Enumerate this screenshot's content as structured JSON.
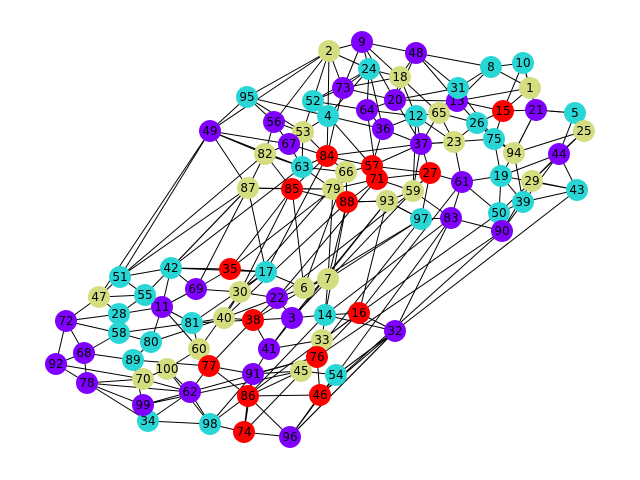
{
  "colors": {
    "purple": "#7f00ff",
    "cyan": "#28d6d6",
    "khaki": "#d4dd80",
    "red": "#ff0000",
    "edge": "#000000"
  },
  "nodes": [
    {
      "id": "1",
      "color": "khaki"
    },
    {
      "id": "2",
      "color": "khaki"
    },
    {
      "id": "3",
      "color": "purple"
    },
    {
      "id": "4",
      "color": "cyan"
    },
    {
      "id": "5",
      "color": "cyan"
    },
    {
      "id": "6",
      "color": "khaki"
    },
    {
      "id": "7",
      "color": "khaki"
    },
    {
      "id": "8",
      "color": "cyan"
    },
    {
      "id": "9",
      "color": "purple"
    },
    {
      "id": "10",
      "color": "cyan"
    },
    {
      "id": "11",
      "color": "purple"
    },
    {
      "id": "12",
      "color": "cyan"
    },
    {
      "id": "13",
      "color": "purple"
    },
    {
      "id": "14",
      "color": "cyan"
    },
    {
      "id": "15",
      "color": "red"
    },
    {
      "id": "16",
      "color": "red"
    },
    {
      "id": "17",
      "color": "cyan"
    },
    {
      "id": "18",
      "color": "khaki"
    },
    {
      "id": "19",
      "color": "cyan"
    },
    {
      "id": "20",
      "color": "purple"
    },
    {
      "id": "21",
      "color": "purple"
    },
    {
      "id": "22",
      "color": "purple"
    },
    {
      "id": "23",
      "color": "khaki"
    },
    {
      "id": "24",
      "color": "cyan"
    },
    {
      "id": "25",
      "color": "khaki"
    },
    {
      "id": "26",
      "color": "cyan"
    },
    {
      "id": "27",
      "color": "red"
    },
    {
      "id": "28",
      "color": "cyan"
    },
    {
      "id": "29",
      "color": "khaki"
    },
    {
      "id": "30",
      "color": "khaki"
    },
    {
      "id": "31",
      "color": "cyan"
    },
    {
      "id": "32",
      "color": "purple"
    },
    {
      "id": "33",
      "color": "khaki"
    },
    {
      "id": "34",
      "color": "cyan"
    },
    {
      "id": "35",
      "color": "red"
    },
    {
      "id": "36",
      "color": "purple"
    },
    {
      "id": "37",
      "color": "purple"
    },
    {
      "id": "38",
      "color": "red"
    },
    {
      "id": "39",
      "color": "cyan"
    },
    {
      "id": "40",
      "color": "khaki"
    },
    {
      "id": "41",
      "color": "purple"
    },
    {
      "id": "42",
      "color": "cyan"
    },
    {
      "id": "43",
      "color": "cyan"
    },
    {
      "id": "44",
      "color": "purple"
    },
    {
      "id": "45",
      "color": "khaki"
    },
    {
      "id": "46",
      "color": "red"
    },
    {
      "id": "47",
      "color": "khaki"
    },
    {
      "id": "48",
      "color": "purple"
    },
    {
      "id": "49",
      "color": "purple"
    },
    {
      "id": "50",
      "color": "cyan"
    },
    {
      "id": "51",
      "color": "cyan"
    },
    {
      "id": "52",
      "color": "cyan"
    },
    {
      "id": "53",
      "color": "khaki"
    },
    {
      "id": "54",
      "color": "cyan"
    },
    {
      "id": "55",
      "color": "cyan"
    },
    {
      "id": "56",
      "color": "purple"
    },
    {
      "id": "57",
      "color": "red"
    },
    {
      "id": "58",
      "color": "cyan"
    },
    {
      "id": "59",
      "color": "khaki"
    },
    {
      "id": "60",
      "color": "khaki"
    },
    {
      "id": "61",
      "color": "purple"
    },
    {
      "id": "62",
      "color": "purple"
    },
    {
      "id": "63",
      "color": "cyan"
    },
    {
      "id": "64",
      "color": "purple"
    },
    {
      "id": "65",
      "color": "khaki"
    },
    {
      "id": "66",
      "color": "khaki"
    },
    {
      "id": "67",
      "color": "purple"
    },
    {
      "id": "68",
      "color": "purple"
    },
    {
      "id": "69",
      "color": "purple"
    },
    {
      "id": "70",
      "color": "khaki"
    },
    {
      "id": "71",
      "color": "red"
    },
    {
      "id": "72",
      "color": "purple"
    },
    {
      "id": "73",
      "color": "purple"
    },
    {
      "id": "74",
      "color": "red"
    },
    {
      "id": "75",
      "color": "cyan"
    },
    {
      "id": "76",
      "color": "red"
    },
    {
      "id": "77",
      "color": "red"
    },
    {
      "id": "78",
      "color": "purple"
    },
    {
      "id": "79",
      "color": "khaki"
    },
    {
      "id": "80",
      "color": "cyan"
    },
    {
      "id": "81",
      "color": "cyan"
    },
    {
      "id": "82",
      "color": "khaki"
    },
    {
      "id": "83",
      "color": "purple"
    },
    {
      "id": "84",
      "color": "red"
    },
    {
      "id": "85",
      "color": "red"
    },
    {
      "id": "86",
      "color": "red"
    },
    {
      "id": "87",
      "color": "khaki"
    },
    {
      "id": "88",
      "color": "red"
    },
    {
      "id": "89",
      "color": "cyan"
    },
    {
      "id": "90",
      "color": "purple"
    },
    {
      "id": "91",
      "color": "purple"
    },
    {
      "id": "92",
      "color": "purple"
    },
    {
      "id": "93",
      "color": "khaki"
    },
    {
      "id": "94",
      "color": "khaki"
    },
    {
      "id": "95",
      "color": "cyan"
    },
    {
      "id": "96",
      "color": "purple"
    },
    {
      "id": "97",
      "color": "cyan"
    },
    {
      "id": "98",
      "color": "cyan"
    },
    {
      "id": "99",
      "color": "purple"
    },
    {
      "id": "100",
      "color": "khaki"
    }
  ],
  "edges": [
    [
      "9",
      "24"
    ],
    [
      "9",
      "48"
    ],
    [
      "9",
      "73"
    ],
    [
      "9",
      "18"
    ],
    [
      "9",
      "2"
    ],
    [
      "48",
      "18"
    ],
    [
      "48",
      "8"
    ],
    [
      "48",
      "31"
    ],
    [
      "48",
      "20"
    ],
    [
      "24",
      "18"
    ],
    [
      "24",
      "73"
    ],
    [
      "24",
      "64"
    ],
    [
      "2",
      "95"
    ],
    [
      "2",
      "52"
    ],
    [
      "2",
      "49"
    ],
    [
      "2",
      "73"
    ],
    [
      "2",
      "4"
    ],
    [
      "8",
      "10"
    ],
    [
      "8",
      "31"
    ],
    [
      "8",
      "1"
    ],
    [
      "10",
      "1"
    ],
    [
      "10",
      "15"
    ],
    [
      "1",
      "21"
    ],
    [
      "1",
      "13"
    ],
    [
      "21",
      "5"
    ],
    [
      "5",
      "25"
    ],
    [
      "25",
      "44"
    ],
    [
      "25",
      "94"
    ],
    [
      "44",
      "43"
    ],
    [
      "43",
      "29"
    ],
    [
      "43",
      "39"
    ],
    [
      "43",
      "19"
    ],
    [
      "29",
      "90"
    ],
    [
      "39",
      "50"
    ],
    [
      "50",
      "90"
    ],
    [
      "90",
      "83"
    ],
    [
      "83",
      "97"
    ],
    [
      "97",
      "93"
    ],
    [
      "93",
      "59"
    ],
    [
      "59",
      "27"
    ],
    [
      "27",
      "61"
    ],
    [
      "61",
      "19"
    ],
    [
      "19",
      "94"
    ],
    [
      "94",
      "75"
    ],
    [
      "75",
      "26"
    ],
    [
      "26",
      "15"
    ],
    [
      "15",
      "13"
    ],
    [
      "13",
      "31"
    ],
    [
      "31",
      "65"
    ],
    [
      "65",
      "12"
    ],
    [
      "12",
      "36"
    ],
    [
      "36",
      "64"
    ],
    [
      "64",
      "20"
    ],
    [
      "20",
      "18"
    ],
    [
      "18",
      "73"
    ],
    [
      "73",
      "52"
    ],
    [
      "52",
      "4"
    ],
    [
      "4",
      "53"
    ],
    [
      "53",
      "56"
    ],
    [
      "56",
      "95"
    ],
    [
      "95",
      "49"
    ],
    [
      "49",
      "82"
    ],
    [
      "82",
      "67"
    ],
    [
      "67",
      "63"
    ],
    [
      "63",
      "84"
    ],
    [
      "84",
      "57"
    ],
    [
      "57",
      "71"
    ],
    [
      "71",
      "88"
    ],
    [
      "88",
      "66"
    ],
    [
      "66",
      "79"
    ],
    [
      "79",
      "85"
    ],
    [
      "85",
      "87"
    ],
    [
      "87",
      "82"
    ],
    [
      "87",
      "49"
    ],
    [
      "53",
      "63"
    ],
    [
      "4",
      "84"
    ],
    [
      "37",
      "23"
    ],
    [
      "23",
      "26"
    ],
    [
      "37",
      "57"
    ],
    [
      "37",
      "12"
    ],
    [
      "65",
      "23"
    ],
    [
      "71",
      "27"
    ],
    [
      "59",
      "37"
    ],
    [
      "93",
      "88"
    ],
    [
      "79",
      "63"
    ],
    [
      "85",
      "84"
    ],
    [
      "66",
      "84"
    ],
    [
      "61",
      "83"
    ],
    [
      "19",
      "50"
    ],
    [
      "29",
      "44"
    ],
    [
      "94",
      "21"
    ],
    [
      "5",
      "21"
    ],
    [
      "75",
      "37"
    ],
    [
      "15",
      "21"
    ],
    [
      "13",
      "20"
    ],
    [
      "24",
      "4"
    ],
    [
      "53",
      "67"
    ],
    [
      "56",
      "67"
    ],
    [
      "87",
      "42"
    ],
    [
      "87",
      "51"
    ],
    [
      "49",
      "51"
    ],
    [
      "42",
      "35"
    ],
    [
      "42",
      "69"
    ],
    [
      "42",
      "51"
    ],
    [
      "51",
      "55"
    ],
    [
      "51",
      "47"
    ],
    [
      "47",
      "72"
    ],
    [
      "47",
      "28"
    ],
    [
      "72",
      "92"
    ],
    [
      "72",
      "68"
    ],
    [
      "92",
      "68"
    ],
    [
      "68",
      "78"
    ],
    [
      "78",
      "99"
    ],
    [
      "99",
      "34"
    ],
    [
      "34",
      "98"
    ],
    [
      "98",
      "74"
    ],
    [
      "74",
      "96"
    ],
    [
      "96",
      "86"
    ],
    [
      "86",
      "46"
    ],
    [
      "46",
      "54"
    ],
    [
      "54",
      "32"
    ],
    [
      "32",
      "16"
    ],
    [
      "16",
      "14"
    ],
    [
      "14",
      "33"
    ],
    [
      "33",
      "76"
    ],
    [
      "76",
      "45"
    ],
    [
      "45",
      "91"
    ],
    [
      "91",
      "41"
    ],
    [
      "41",
      "38"
    ],
    [
      "38",
      "40"
    ],
    [
      "40",
      "81"
    ],
    [
      "81",
      "11"
    ],
    [
      "11",
      "55"
    ],
    [
      "55",
      "28"
    ],
    [
      "28",
      "58"
    ],
    [
      "58",
      "80"
    ],
    [
      "80",
      "89"
    ],
    [
      "89",
      "70"
    ],
    [
      "70",
      "100"
    ],
    [
      "100",
      "60"
    ],
    [
      "60",
      "77"
    ],
    [
      "77",
      "62"
    ],
    [
      "62",
      "99"
    ],
    [
      "62",
      "98"
    ],
    [
      "77",
      "86"
    ],
    [
      "91",
      "86"
    ],
    [
      "38",
      "3"
    ],
    [
      "3",
      "22"
    ],
    [
      "22",
      "6"
    ],
    [
      "6",
      "7"
    ],
    [
      "7",
      "14"
    ],
    [
      "3",
      "14"
    ],
    [
      "22",
      "30"
    ],
    [
      "30",
      "69"
    ],
    [
      "69",
      "35"
    ],
    [
      "35",
      "17"
    ],
    [
      "17",
      "6"
    ],
    [
      "17",
      "30"
    ],
    [
      "40",
      "30"
    ],
    [
      "11",
      "69"
    ],
    [
      "38",
      "22"
    ],
    [
      "41",
      "3"
    ],
    [
      "45",
      "54"
    ],
    [
      "76",
      "46"
    ],
    [
      "33",
      "16"
    ],
    [
      "16",
      "32"
    ],
    [
      "32",
      "54"
    ],
    [
      "32",
      "96"
    ],
    [
      "32",
      "46"
    ],
    [
      "32",
      "14"
    ],
    [
      "58",
      "68"
    ],
    [
      "28",
      "72"
    ],
    [
      "80",
      "11"
    ],
    [
      "89",
      "99"
    ],
    [
      "70",
      "78"
    ],
    [
      "100",
      "62"
    ],
    [
      "60",
      "81"
    ],
    [
      "77",
      "91"
    ],
    [
      "96",
      "46"
    ],
    [
      "74",
      "86"
    ],
    [
      "98",
      "100"
    ],
    [
      "34",
      "78"
    ],
    [
      "92",
      "78"
    ],
    [
      "47",
      "55"
    ],
    [
      "42",
      "17"
    ],
    [
      "32",
      "43"
    ],
    [
      "32",
      "83"
    ],
    [
      "16",
      "93"
    ],
    [
      "14",
      "88"
    ],
    [
      "7",
      "79"
    ],
    [
      "6",
      "85"
    ],
    [
      "17",
      "87"
    ],
    [
      "35",
      "85"
    ],
    [
      "42",
      "63"
    ],
    [
      "30",
      "66"
    ],
    [
      "3",
      "93"
    ],
    [
      "22",
      "59"
    ],
    [
      "7",
      "97"
    ],
    [
      "14",
      "83"
    ],
    [
      "33",
      "50"
    ],
    [
      "76",
      "90"
    ],
    [
      "16",
      "61"
    ],
    [
      "6",
      "66"
    ],
    [
      "7",
      "88"
    ],
    [
      "35",
      "79"
    ],
    [
      "69",
      "87"
    ],
    [
      "51",
      "82"
    ],
    [
      "47",
      "49"
    ],
    [
      "55",
      "87"
    ],
    [
      "17",
      "84"
    ],
    [
      "22",
      "71"
    ],
    [
      "30",
      "85"
    ],
    [
      "40",
      "88"
    ],
    [
      "38",
      "97"
    ],
    [
      "3",
      "27"
    ],
    [
      "41",
      "93"
    ],
    [
      "45",
      "97"
    ],
    [
      "54",
      "83"
    ],
    [
      "46",
      "90"
    ],
    [
      "96",
      "32"
    ],
    [
      "86",
      "14"
    ],
    [
      "74",
      "16"
    ],
    [
      "98",
      "33"
    ],
    [
      "62",
      "76"
    ],
    [
      "99",
      "45"
    ],
    [
      "11",
      "42"
    ],
    [
      "81",
      "17"
    ],
    [
      "60",
      "30"
    ],
    [
      "77",
      "38"
    ],
    [
      "91",
      "76"
    ],
    [
      "41",
      "33"
    ],
    [
      "40",
      "22"
    ],
    [
      "81",
      "38"
    ],
    [
      "11",
      "60"
    ],
    [
      "89",
      "77"
    ],
    [
      "70",
      "62"
    ],
    [
      "80",
      "40"
    ],
    [
      "58",
      "81"
    ],
    [
      "28",
      "11"
    ],
    [
      "72",
      "58"
    ],
    [
      "68",
      "89"
    ],
    [
      "92",
      "70"
    ],
    [
      "78",
      "62"
    ],
    [
      "34",
      "62"
    ],
    [
      "98",
      "91"
    ],
    [
      "74",
      "91"
    ],
    [
      "96",
      "54"
    ],
    [
      "86",
      "45"
    ],
    [
      "46",
      "54"
    ],
    [
      "57",
      "27"
    ],
    [
      "71",
      "59"
    ],
    [
      "88",
      "93"
    ],
    [
      "66",
      "57"
    ],
    [
      "79",
      "71"
    ],
    [
      "84",
      "37"
    ],
    [
      "63",
      "66"
    ],
    [
      "67",
      "84"
    ],
    [
      "82",
      "85"
    ],
    [
      "56",
      "82"
    ],
    [
      "53",
      "84"
    ],
    [
      "4",
      "36"
    ],
    [
      "52",
      "64"
    ],
    [
      "73",
      "20"
    ],
    [
      "18",
      "65"
    ],
    [
      "24",
      "36"
    ],
    [
      "20",
      "31"
    ],
    [
      "64",
      "12"
    ],
    [
      "36",
      "37"
    ],
    [
      "12",
      "23"
    ],
    [
      "65",
      "26"
    ],
    [
      "31",
      "75"
    ],
    [
      "13",
      "26"
    ],
    [
      "15",
      "75"
    ],
    [
      "21",
      "94"
    ],
    [
      "25",
      "29"
    ],
    [
      "44",
      "19"
    ],
    [
      "94",
      "39"
    ],
    [
      "26",
      "94"
    ],
    [
      "75",
      "19"
    ],
    [
      "23",
      "61"
    ],
    [
      "37",
      "27"
    ],
    [
      "27",
      "97"
    ],
    [
      "59",
      "83"
    ],
    [
      "93",
      "97"
    ],
    [
      "61",
      "50"
    ],
    [
      "19",
      "39"
    ],
    [
      "29",
      "50"
    ],
    [
      "44",
      "90"
    ],
    [
      "5",
      "44"
    ],
    [
      "1",
      "15"
    ],
    [
      "8",
      "13"
    ],
    [
      "10",
      "21"
    ],
    [
      "48",
      "13"
    ],
    [
      "9",
      "20"
    ],
    [
      "2",
      "56"
    ],
    [
      "95",
      "53"
    ],
    [
      "49",
      "63"
    ],
    [
      "52",
      "53"
    ],
    [
      "4",
      "57"
    ],
    [
      "73",
      "84"
    ],
    [
      "64",
      "71"
    ],
    [
      "36",
      "57"
    ],
    [
      "12",
      "59"
    ],
    [
      "65",
      "37"
    ],
    [
      "20",
      "37"
    ],
    [
      "18",
      "12"
    ],
    [
      "24",
      "52"
    ],
    [
      "2",
      "24"
    ],
    [
      "95",
      "4"
    ],
    [
      "49",
      "67"
    ],
    [
      "82",
      "63"
    ],
    [
      "87",
      "79"
    ],
    [
      "85",
      "88"
    ]
  ]
}
